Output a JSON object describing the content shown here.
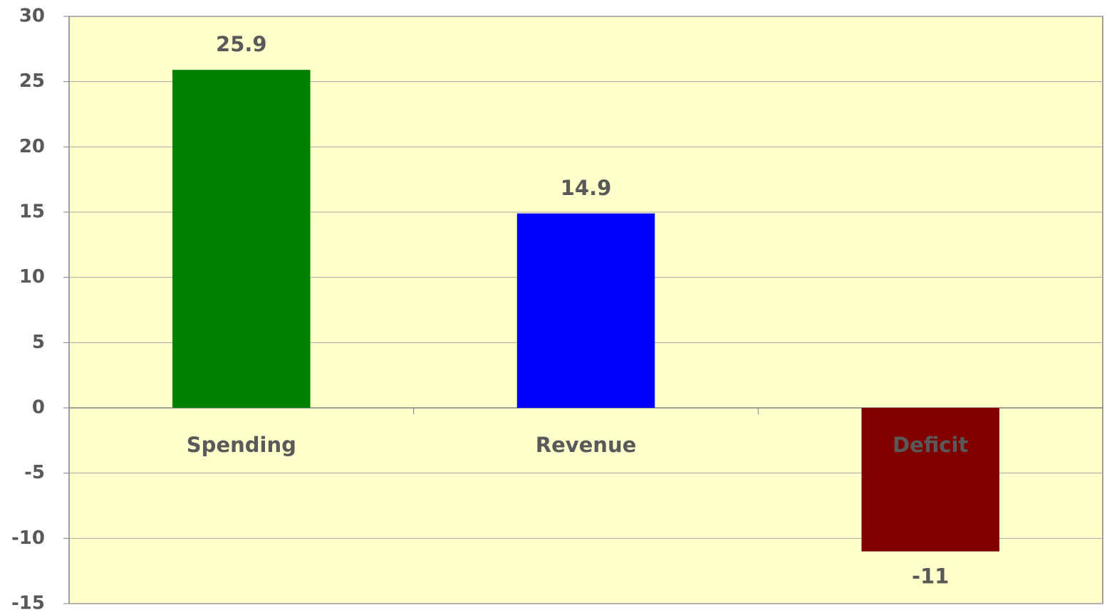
{
  "chart_data": {
    "type": "bar",
    "categories": [
      "Spending",
      "Revenue",
      "Deficit"
    ],
    "values": [
      25.9,
      14.9,
      -11
    ],
    "colors": [
      "#008000",
      "#0000ff",
      "#800000"
    ],
    "ylim": [
      -15,
      30
    ],
    "yticks": [
      -15,
      -10,
      -5,
      0,
      5,
      10,
      15,
      20,
      25,
      30
    ],
    "grid": true
  }
}
